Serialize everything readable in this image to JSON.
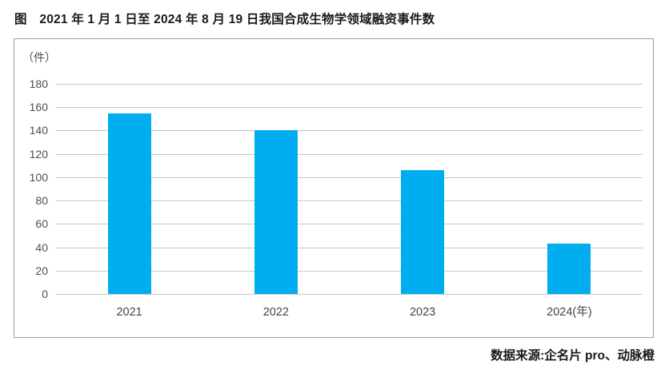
{
  "title": "图　2021 年 1 月 1 日至 2024 年 8 月 19 日我国合成生物学领域融资事件数",
  "source": "数据来源:企名片 pro、动脉橙",
  "colors": {
    "bar": "#00AEEF",
    "gridline": "#c6c6c6",
    "box_border": "#9e9e9e",
    "axis_text": "#4d4d4d",
    "title_text": "#1a1a1a"
  },
  "chart_data": {
    "type": "bar",
    "title": "图　2021 年 1 月 1 日至 2024 年 8 月 19 日我国合成生物学领域融资事件数",
    "unit_label": "（件）",
    "categories": [
      "2021",
      "2022",
      "2023",
      "2024(年)"
    ],
    "values": [
      155,
      140,
      106,
      43
    ],
    "xlabel": "年",
    "ylabel": "件",
    "ylim": [
      0,
      180
    ],
    "yticks": [
      0,
      20,
      40,
      60,
      80,
      100,
      120,
      140,
      160,
      180
    ],
    "grid": true,
    "legend": "none",
    "bar_color": "#00AEEF",
    "source_note": "数据来源:企名片 pro、动脉橙"
  }
}
